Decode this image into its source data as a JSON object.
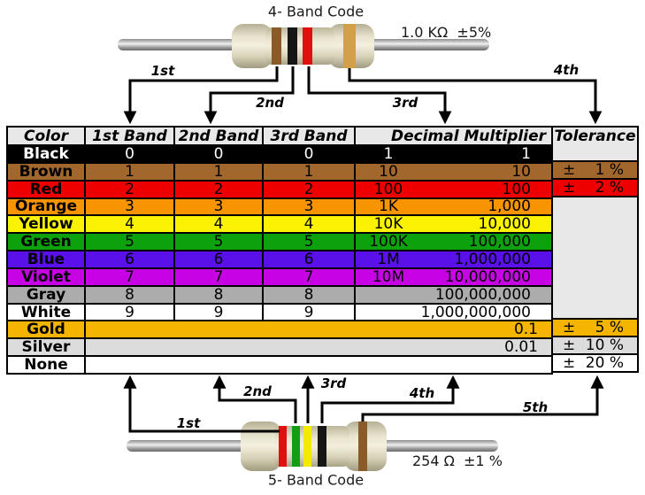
{
  "top_diagram": {
    "title": "4- Band Code",
    "value": "1.0 KΩ  ±5%",
    "band_names": [
      "brown",
      "black",
      "red",
      "gold"
    ],
    "arrow_labels": [
      "1st",
      "2nd",
      "3rd",
      "4th"
    ]
  },
  "bottom_diagram": {
    "title": "5- Band Code",
    "value": "254 Ω  ±1 %",
    "band_names": [
      "red",
      "green",
      "yellow",
      "black",
      "brown"
    ],
    "arrow_labels": [
      "1st",
      "2nd",
      "3rd",
      "4th",
      "5th"
    ]
  },
  "band_colors": {
    "brown": "#8a5a28",
    "black": "#161616",
    "red": "#e01010",
    "gold": "#d2a04a",
    "green": "#149c14",
    "yellow": "#f2ea00"
  },
  "table": {
    "headers": [
      "Color",
      "1st Band",
      "2nd Band",
      "3rd Band",
      "Decimal Multiplier",
      "Tolerance"
    ],
    "plus_minus": "±",
    "empty_tolerance_bg": "#e8e8e8",
    "rows": [
      {
        "name": "Black",
        "bg": "#000000",
        "fg": "#ffffff",
        "digits": [
          "0",
          "0",
          "0"
        ],
        "mult_short": "1",
        "mult_long": "1",
        "tolerance": null
      },
      {
        "name": "Brown",
        "bg": "#a2672d",
        "digits": [
          "1",
          "1",
          "1"
        ],
        "mult_short": "10",
        "mult_long": "10",
        "tolerance": "1 %"
      },
      {
        "name": "Red",
        "bg": "#ee0000",
        "digits": [
          "2",
          "2",
          "2"
        ],
        "mult_short": "100",
        "mult_long": "100",
        "tolerance": "2 %"
      },
      {
        "name": "Orange",
        "bg": "#f79400",
        "digits": [
          "3",
          "3",
          "3"
        ],
        "mult_short": "1K",
        "mult_long": "1,000"
      },
      {
        "name": "Yellow",
        "bg": "#faf202",
        "digits": [
          "4",
          "4",
          "4"
        ],
        "mult_short": "10K",
        "mult_long": "10,000"
      },
      {
        "name": "Green",
        "bg": "#0da10d",
        "digits": [
          "5",
          "5",
          "5"
        ],
        "mult_short": "100K",
        "mult_long": "100,000"
      },
      {
        "name": "Blue",
        "bg": "#5a10e8",
        "digits": [
          "6",
          "6",
          "6"
        ],
        "mult_short": "1M",
        "mult_long": "1,000,000"
      },
      {
        "name": "Violet",
        "bg": "#c703e6",
        "digits": [
          "7",
          "7",
          "7"
        ],
        "mult_short": "10M",
        "mult_long": "10,000,000"
      },
      {
        "name": "Gray",
        "bg": "#acacac",
        "digits": [
          "8",
          "8",
          "8"
        ],
        "mult_short": "",
        "mult_long": "100,000,000"
      },
      {
        "name": "White",
        "bg": "#ffffff",
        "digits": [
          "9",
          "9",
          "9"
        ],
        "mult_short": "",
        "mult_long": "1,000,000,000"
      },
      {
        "name": "Gold",
        "bg": "#f4b400",
        "merged": true,
        "mult_long": "0.1",
        "tolerance": "5 %"
      },
      {
        "name": "Silver",
        "bg": "#dcdcdc",
        "merged": true,
        "mult_long": "0.01",
        "tolerance": "10 %"
      },
      {
        "name": "None",
        "bg": "#ffffff",
        "merged": true,
        "mult_long": "",
        "tolerance": "20 %"
      }
    ]
  }
}
